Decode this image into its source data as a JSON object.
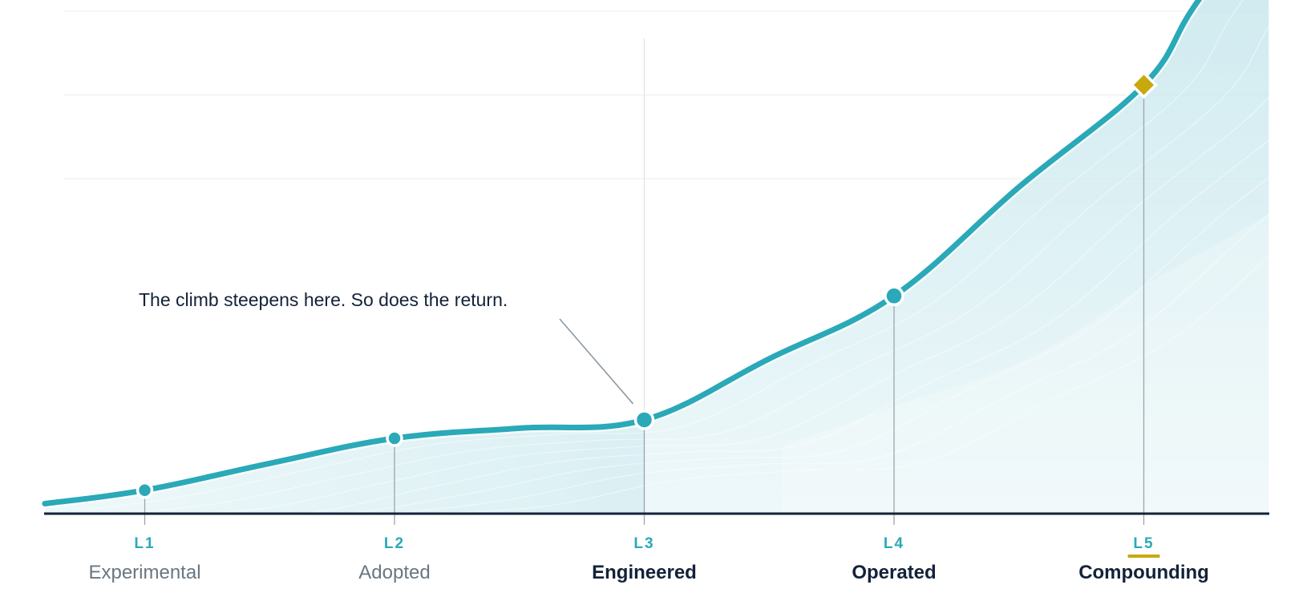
{
  "chart_data": {
    "type": "area",
    "title": "",
    "xlabel": "",
    "ylabel": "",
    "xlim": [
      0.6,
      5.5
    ],
    "ylim": [
      0,
      6.2
    ],
    "grid": true,
    "legend": "none",
    "levels": [
      {
        "code": "L1",
        "name": "Experimental",
        "x": 1,
        "y": 0.28,
        "marker": "dot",
        "emphasis": false
      },
      {
        "code": "L2",
        "name": "Adopted",
        "x": 2,
        "y": 0.9,
        "marker": "dot",
        "emphasis": false
      },
      {
        "code": "L3",
        "name": "Engineered",
        "x": 3,
        "y": 1.12,
        "marker": "dot",
        "emphasis": true
      },
      {
        "code": "L4",
        "name": "Operated",
        "x": 4,
        "y": 2.6,
        "marker": "dot",
        "emphasis": true
      },
      {
        "code": "L5",
        "name": "Compounding",
        "x": 5,
        "y": 5.12,
        "marker": "diamond",
        "emphasis": true,
        "current": true
      }
    ],
    "series": [
      {
        "x": [
          0.6,
          1,
          1.5,
          2,
          2.5,
          3,
          3.5,
          4,
          4.5,
          5,
          5.2,
          5.5
        ],
        "values": [
          0.12,
          0.28,
          0.6,
          0.9,
          1.02,
          1.12,
          1.85,
          2.6,
          3.9,
          5.12,
          6.05,
          7.3
        ]
      }
    ],
    "annotation": {
      "text": "The climb steepens here. So does the return.",
      "target_level": "L3"
    },
    "colors": {
      "line": "#2aa9b8",
      "area": "#cde9ee",
      "accent": "#c8a80c",
      "axis": "#132238",
      "grid": "#eceff1",
      "muted_label": "#697681",
      "strong_label": "#132238"
    }
  }
}
